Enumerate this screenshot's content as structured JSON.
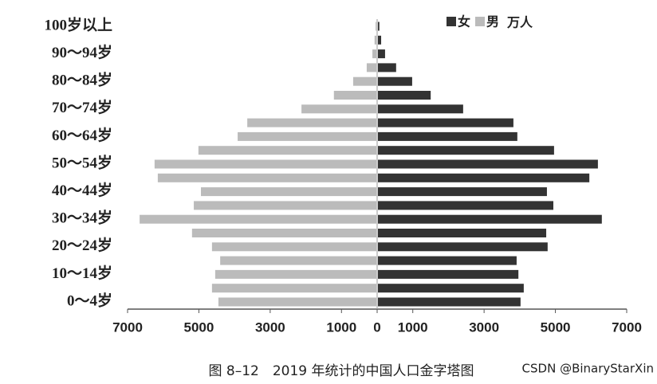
{
  "chart_data": {
    "type": "pyramid",
    "title": "图 8–12　2019 年统计的中国人口金字塔图",
    "unit": "万人",
    "watermark": "CSDN @BinaryStarXin",
    "categories": [
      "0～4岁",
      null,
      "10～14岁",
      null,
      "20～24岁",
      null,
      "30～34岁",
      null,
      "40～44岁",
      null,
      "50～54岁",
      null,
      "60～64岁",
      null,
      "70～74岁",
      null,
      "80～84岁",
      null,
      "90～94岁",
      null,
      "100岁以上"
    ],
    "series": [
      {
        "name": "女",
        "color": "#333333",
        "side": "right",
        "values": [
          4000,
          4090,
          3940,
          3890,
          4760,
          4720,
          6280,
          4920,
          4740,
          5930,
          6170,
          4940,
          3910,
          3800,
          2390,
          1480,
          960,
          510,
          200,
          90,
          40
        ]
      },
      {
        "name": "男",
        "color": "#bbbbbb",
        "side": "left",
        "values": [
          4430,
          4610,
          4520,
          4380,
          4610,
          5170,
          6640,
          5120,
          4920,
          6130,
          6220,
          4990,
          3890,
          3620,
          2100,
          1190,
          650,
          270,
          110,
          50,
          20
        ]
      }
    ],
    "xlim": [
      0,
      7000
    ],
    "xticks": [
      0,
      1000,
      3000,
      5000,
      7000
    ]
  }
}
